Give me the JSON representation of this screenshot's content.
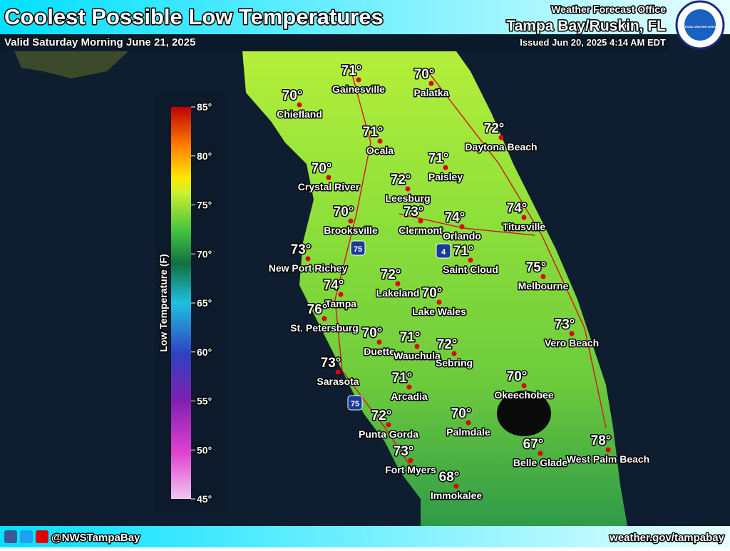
{
  "header": {
    "title": "Coolest Possible Low Temperatures",
    "valid": "Valid Saturday Morning June 21, 2025",
    "office": "Weather Forecast Office",
    "location": "Tampa Bay/Ruskin, FL",
    "issued": "Issued Jun 20, 2025 4:14 AM EDT",
    "logo_text": "NATIONAL WEATHER SERVICE"
  },
  "legend": {
    "label": "Low Temperature (F)",
    "ticks": [
      "85°",
      "80°",
      "75°",
      "70°",
      "65°",
      "60°",
      "55°",
      "50°",
      "45°"
    ]
  },
  "shields": [
    "75",
    "4",
    "75"
  ],
  "cities": [
    {
      "name": "Gainesville",
      "temp": "71°"
    },
    {
      "name": "Palatka",
      "temp": "70°"
    },
    {
      "name": "Chiefland",
      "temp": "70°"
    },
    {
      "name": "Ocala",
      "temp": "71°"
    },
    {
      "name": "Daytona Beach",
      "temp": "72°"
    },
    {
      "name": "Paisley",
      "temp": "71°"
    },
    {
      "name": "Crystal River",
      "temp": "70°"
    },
    {
      "name": "Leesburg",
      "temp": "72°"
    },
    {
      "name": "Clermont",
      "temp": "73°"
    },
    {
      "name": "Orlando",
      "temp": "74°"
    },
    {
      "name": "Titusville",
      "temp": "74°"
    },
    {
      "name": "Brooksville",
      "temp": "70°"
    },
    {
      "name": "New Port Richey",
      "temp": "73°"
    },
    {
      "name": "Saint Cloud",
      "temp": "71°"
    },
    {
      "name": "Lakeland",
      "temp": "72°"
    },
    {
      "name": "Melbourne",
      "temp": "75°"
    },
    {
      "name": "Tampa",
      "temp": "74°"
    },
    {
      "name": "Lake Wales",
      "temp": "70°"
    },
    {
      "name": "St. Petersburg",
      "temp": "76°"
    },
    {
      "name": "Vero Beach",
      "temp": "73°"
    },
    {
      "name": "Duette",
      "temp": "70°"
    },
    {
      "name": "Wauchula",
      "temp": "71°"
    },
    {
      "name": "Sebring",
      "temp": "72°"
    },
    {
      "name": "Sarasota",
      "temp": "73°"
    },
    {
      "name": "Arcadia",
      "temp": "71°"
    },
    {
      "name": "Okeechobee",
      "temp": "70°"
    },
    {
      "name": "Punta Gorda",
      "temp": "72°"
    },
    {
      "name": "Palmdale",
      "temp": "70°"
    },
    {
      "name": "Belle Glade",
      "temp": "67°"
    },
    {
      "name": "West Palm Beach",
      "temp": "78°"
    },
    {
      "name": "Fort Myers",
      "temp": "73°"
    },
    {
      "name": "Immokalee",
      "temp": "68°"
    }
  ],
  "footer": {
    "handle": "@NWSTampaBay",
    "url": "weather.gov/tampabay"
  }
}
